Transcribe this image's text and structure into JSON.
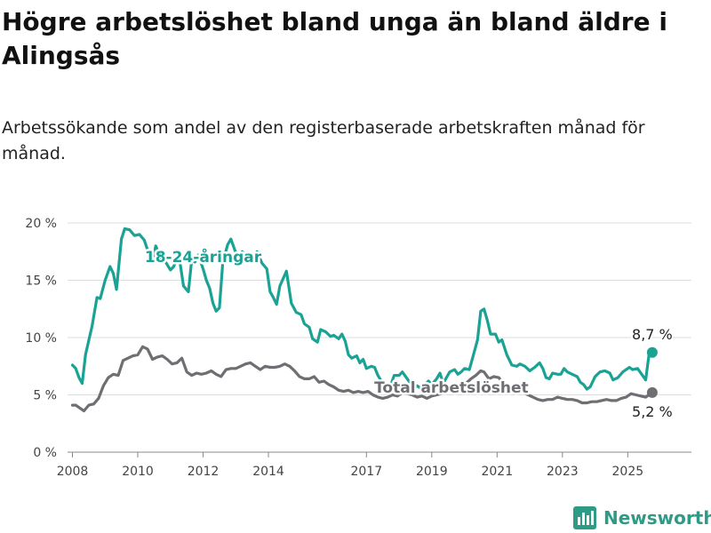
{
  "header": {
    "title": "Högre arbetslöshet bland unga än bland äldre i Alingsås",
    "subtitle": "Arbetssökande som andel av den registerbaserade arbetskraften månad för månad."
  },
  "brand": {
    "name": "Newsworthy",
    "icon": "bar-chart-logo-icon",
    "color": "#2e9b87"
  },
  "chart_data": {
    "type": "line",
    "title": "Högre arbetslöshet bland unga än bland äldre i Alingsås",
    "ylim": [
      0,
      20
    ],
    "xlim": [
      2007.85,
      2026.95
    ],
    "y_ticks": [
      {
        "value": 0,
        "label": "0 %"
      },
      {
        "value": 5,
        "label": "5 %"
      },
      {
        "value": 10,
        "label": "10 %"
      },
      {
        "value": 15,
        "label": "15 %"
      },
      {
        "value": 20,
        "label": "20 %"
      }
    ],
    "x_ticks": [
      {
        "value": 2008,
        "label": "2008"
      },
      {
        "value": 2010,
        "label": "2010"
      },
      {
        "value": 2012,
        "label": "2012"
      },
      {
        "value": 2014,
        "label": "2014"
      },
      {
        "value": 2017,
        "label": "2017"
      },
      {
        "value": 2019,
        "label": "2019"
      },
      {
        "value": 2021,
        "label": "2021"
      },
      {
        "value": 2023,
        "label": "2023"
      },
      {
        "value": 2025,
        "label": "2025"
      }
    ],
    "grid": true,
    "series": [
      {
        "name": "18-24-åringar",
        "color": "#1aa394",
        "label_at": {
          "x": 2012.0,
          "y": 16.6
        },
        "end_label": "8,7 %",
        "end_label_position": "above",
        "points": [
          [
            2008.0,
            7.6
          ],
          [
            2008.1,
            7.3
          ],
          [
            2008.2,
            6.5
          ],
          [
            2008.3,
            6.0
          ],
          [
            2008.4,
            8.5
          ],
          [
            2008.6,
            11.0
          ],
          [
            2008.75,
            13.5
          ],
          [
            2008.85,
            13.4
          ],
          [
            2009.0,
            15.0
          ],
          [
            2009.15,
            16.2
          ],
          [
            2009.25,
            15.6
          ],
          [
            2009.35,
            14.2
          ],
          [
            2009.5,
            18.6
          ],
          [
            2009.6,
            19.5
          ],
          [
            2009.75,
            19.4
          ],
          [
            2009.9,
            18.9
          ],
          [
            2010.05,
            19.0
          ],
          [
            2010.2,
            18.5
          ],
          [
            2010.35,
            17.2
          ],
          [
            2010.45,
            16.5
          ],
          [
            2010.55,
            18.0
          ],
          [
            2010.7,
            17.0
          ],
          [
            2010.85,
            16.6
          ],
          [
            2011.0,
            15.9
          ],
          [
            2011.1,
            16.2
          ],
          [
            2011.2,
            17.0
          ],
          [
            2011.3,
            16.4
          ],
          [
            2011.4,
            14.5
          ],
          [
            2011.55,
            14.0
          ],
          [
            2011.65,
            16.8
          ],
          [
            2011.75,
            16.6
          ],
          [
            2011.85,
            17.2
          ],
          [
            2012.0,
            16.0
          ],
          [
            2012.1,
            15.0
          ],
          [
            2012.2,
            14.3
          ],
          [
            2012.3,
            13.0
          ],
          [
            2012.4,
            12.3
          ],
          [
            2012.5,
            12.6
          ],
          [
            2012.6,
            16.5
          ],
          [
            2012.75,
            18.1
          ],
          [
            2012.85,
            18.6
          ],
          [
            2013.0,
            17.4
          ],
          [
            2013.1,
            17.0
          ],
          [
            2013.2,
            17.5
          ],
          [
            2013.35,
            17.0
          ],
          [
            2013.5,
            16.7
          ],
          [
            2013.65,
            17.5
          ],
          [
            2013.8,
            16.5
          ],
          [
            2013.95,
            16.0
          ],
          [
            2014.05,
            14.0
          ],
          [
            2014.15,
            13.5
          ],
          [
            2014.25,
            12.9
          ],
          [
            2014.35,
            14.5
          ],
          [
            2014.55,
            15.8
          ],
          [
            2014.7,
            13.0
          ],
          [
            2014.85,
            12.2
          ],
          [
            2015.0,
            12.0
          ],
          [
            2015.1,
            11.2
          ],
          [
            2015.25,
            10.9
          ],
          [
            2015.35,
            9.9
          ],
          [
            2015.5,
            9.6
          ],
          [
            2015.6,
            10.7
          ],
          [
            2015.75,
            10.5
          ],
          [
            2015.9,
            10.1
          ],
          [
            2016.0,
            10.2
          ],
          [
            2016.15,
            9.9
          ],
          [
            2016.25,
            10.3
          ],
          [
            2016.35,
            9.7
          ],
          [
            2016.45,
            8.5
          ],
          [
            2016.55,
            8.2
          ],
          [
            2016.7,
            8.4
          ],
          [
            2016.8,
            7.8
          ],
          [
            2016.9,
            8.1
          ],
          [
            2017.0,
            7.3
          ],
          [
            2017.15,
            7.5
          ],
          [
            2017.25,
            7.4
          ],
          [
            2017.35,
            6.7
          ],
          [
            2017.5,
            6.0
          ],
          [
            2017.6,
            5.7
          ],
          [
            2017.75,
            5.9
          ],
          [
            2017.85,
            6.7
          ],
          [
            2018.0,
            6.7
          ],
          [
            2018.1,
            7.0
          ],
          [
            2018.2,
            6.6
          ],
          [
            2018.35,
            6.0
          ],
          [
            2018.45,
            5.6
          ],
          [
            2018.55,
            5.8
          ],
          [
            2018.7,
            5.5
          ],
          [
            2018.8,
            5.9
          ],
          [
            2018.9,
            6.2
          ],
          [
            2019.0,
            5.9
          ],
          [
            2019.15,
            6.4
          ],
          [
            2019.25,
            6.9
          ],
          [
            2019.35,
            6.0
          ],
          [
            2019.45,
            6.5
          ],
          [
            2019.55,
            7.0
          ],
          [
            2019.7,
            7.2
          ],
          [
            2019.8,
            6.8
          ],
          [
            2019.9,
            7.0
          ],
          [
            2020.0,
            7.3
          ],
          [
            2020.15,
            7.2
          ],
          [
            2020.25,
            8.2
          ],
          [
            2020.4,
            9.8
          ],
          [
            2020.5,
            12.3
          ],
          [
            2020.6,
            12.5
          ],
          [
            2020.7,
            11.5
          ],
          [
            2020.8,
            10.3
          ],
          [
            2020.95,
            10.3
          ],
          [
            2021.05,
            9.6
          ],
          [
            2021.15,
            9.8
          ],
          [
            2021.3,
            8.5
          ],
          [
            2021.45,
            7.6
          ],
          [
            2021.6,
            7.5
          ],
          [
            2021.7,
            7.7
          ],
          [
            2021.85,
            7.5
          ],
          [
            2022.0,
            7.1
          ],
          [
            2022.15,
            7.4
          ],
          [
            2022.3,
            7.8
          ],
          [
            2022.4,
            7.3
          ],
          [
            2022.5,
            6.5
          ],
          [
            2022.6,
            6.4
          ],
          [
            2022.7,
            6.9
          ],
          [
            2022.85,
            6.8
          ],
          [
            2022.95,
            6.8
          ],
          [
            2023.05,
            7.3
          ],
          [
            2023.15,
            7.0
          ],
          [
            2023.3,
            6.8
          ],
          [
            2023.45,
            6.6
          ],
          [
            2023.55,
            6.1
          ],
          [
            2023.65,
            5.9
          ],
          [
            2023.75,
            5.5
          ],
          [
            2023.85,
            5.7
          ],
          [
            2024.0,
            6.6
          ],
          [
            2024.15,
            7.0
          ],
          [
            2024.3,
            7.1
          ],
          [
            2024.45,
            6.9
          ],
          [
            2024.55,
            6.3
          ],
          [
            2024.7,
            6.5
          ],
          [
            2024.85,
            7.0
          ],
          [
            2024.95,
            7.2
          ],
          [
            2025.05,
            7.4
          ],
          [
            2025.15,
            7.2
          ],
          [
            2025.3,
            7.3
          ],
          [
            2025.45,
            6.7
          ],
          [
            2025.55,
            6.3
          ],
          [
            2025.65,
            8.5
          ],
          [
            2025.75,
            8.7
          ]
        ]
      },
      {
        "name": "Total arbetslöshet",
        "color": "#6e6e73",
        "label_at": {
          "x": 2019.6,
          "y": 5.2
        },
        "end_label": "5,2 %",
        "end_label_position": "below",
        "points": [
          [
            2008.0,
            4.1
          ],
          [
            2008.1,
            4.1
          ],
          [
            2008.2,
            3.9
          ],
          [
            2008.35,
            3.6
          ],
          [
            2008.5,
            4.1
          ],
          [
            2008.65,
            4.2
          ],
          [
            2008.8,
            4.7
          ],
          [
            2008.95,
            5.8
          ],
          [
            2009.1,
            6.5
          ],
          [
            2009.25,
            6.8
          ],
          [
            2009.4,
            6.7
          ],
          [
            2009.55,
            8.0
          ],
          [
            2009.7,
            8.2
          ],
          [
            2009.85,
            8.4
          ],
          [
            2010.0,
            8.5
          ],
          [
            2010.15,
            9.2
          ],
          [
            2010.3,
            9.0
          ],
          [
            2010.45,
            8.1
          ],
          [
            2010.6,
            8.3
          ],
          [
            2010.75,
            8.4
          ],
          [
            2010.9,
            8.1
          ],
          [
            2011.05,
            7.7
          ],
          [
            2011.2,
            7.8
          ],
          [
            2011.35,
            8.2
          ],
          [
            2011.5,
            7.0
          ],
          [
            2011.65,
            6.7
          ],
          [
            2011.8,
            6.9
          ],
          [
            2011.95,
            6.8
          ],
          [
            2012.1,
            6.9
          ],
          [
            2012.25,
            7.1
          ],
          [
            2012.4,
            6.8
          ],
          [
            2012.55,
            6.6
          ],
          [
            2012.7,
            7.2
          ],
          [
            2012.85,
            7.3
          ],
          [
            2013.0,
            7.3
          ],
          [
            2013.15,
            7.5
          ],
          [
            2013.3,
            7.7
          ],
          [
            2013.45,
            7.8
          ],
          [
            2013.6,
            7.5
          ],
          [
            2013.75,
            7.2
          ],
          [
            2013.9,
            7.5
          ],
          [
            2014.05,
            7.4
          ],
          [
            2014.2,
            7.4
          ],
          [
            2014.35,
            7.5
          ],
          [
            2014.5,
            7.7
          ],
          [
            2014.65,
            7.5
          ],
          [
            2014.8,
            7.1
          ],
          [
            2014.95,
            6.6
          ],
          [
            2015.1,
            6.4
          ],
          [
            2015.25,
            6.4
          ],
          [
            2015.4,
            6.6
          ],
          [
            2015.55,
            6.1
          ],
          [
            2015.7,
            6.2
          ],
          [
            2015.85,
            5.9
          ],
          [
            2016.0,
            5.7
          ],
          [
            2016.15,
            5.4
          ],
          [
            2016.3,
            5.3
          ],
          [
            2016.45,
            5.4
          ],
          [
            2016.6,
            5.2
          ],
          [
            2016.75,
            5.3
          ],
          [
            2016.9,
            5.2
          ],
          [
            2017.05,
            5.3
          ],
          [
            2017.2,
            5.0
          ],
          [
            2017.35,
            4.8
          ],
          [
            2017.5,
            4.7
          ],
          [
            2017.65,
            4.8
          ],
          [
            2017.8,
            5.0
          ],
          [
            2017.95,
            4.9
          ],
          [
            2018.1,
            5.2
          ],
          [
            2018.25,
            5.1
          ],
          [
            2018.4,
            5.0
          ],
          [
            2018.55,
            4.8
          ],
          [
            2018.7,
            4.9
          ],
          [
            2018.85,
            4.7
          ],
          [
            2019.0,
            4.9
          ],
          [
            2019.15,
            5.0
          ],
          [
            2019.3,
            5.1
          ],
          [
            2019.45,
            5.3
          ],
          [
            2019.6,
            5.5
          ],
          [
            2019.75,
            5.7
          ],
          [
            2019.9,
            5.9
          ],
          [
            2020.05,
            6.0
          ],
          [
            2020.2,
            6.4
          ],
          [
            2020.35,
            6.7
          ],
          [
            2020.5,
            7.1
          ],
          [
            2020.6,
            7.0
          ],
          [
            2020.75,
            6.4
          ],
          [
            2020.9,
            6.6
          ],
          [
            2021.05,
            6.5
          ],
          [
            2021.2,
            6.0
          ],
          [
            2021.35,
            5.8
          ],
          [
            2021.5,
            5.6
          ],
          [
            2021.65,
            5.5
          ],
          [
            2021.8,
            5.2
          ],
          [
            2021.95,
            5.0
          ],
          [
            2022.1,
            4.8
          ],
          [
            2022.25,
            4.6
          ],
          [
            2022.4,
            4.5
          ],
          [
            2022.55,
            4.6
          ],
          [
            2022.7,
            4.6
          ],
          [
            2022.85,
            4.8
          ],
          [
            2023.0,
            4.7
          ],
          [
            2023.15,
            4.6
          ],
          [
            2023.3,
            4.6
          ],
          [
            2023.45,
            4.5
          ],
          [
            2023.6,
            4.3
          ],
          [
            2023.75,
            4.3
          ],
          [
            2023.9,
            4.4
          ],
          [
            2024.05,
            4.4
          ],
          [
            2024.2,
            4.5
          ],
          [
            2024.35,
            4.6
          ],
          [
            2024.5,
            4.5
          ],
          [
            2024.65,
            4.5
          ],
          [
            2024.8,
            4.7
          ],
          [
            2024.95,
            4.8
          ],
          [
            2025.1,
            5.1
          ],
          [
            2025.25,
            5.0
          ],
          [
            2025.4,
            4.9
          ],
          [
            2025.55,
            4.8
          ],
          [
            2025.7,
            5.1
          ],
          [
            2025.75,
            5.2
          ]
        ]
      }
    ]
  }
}
